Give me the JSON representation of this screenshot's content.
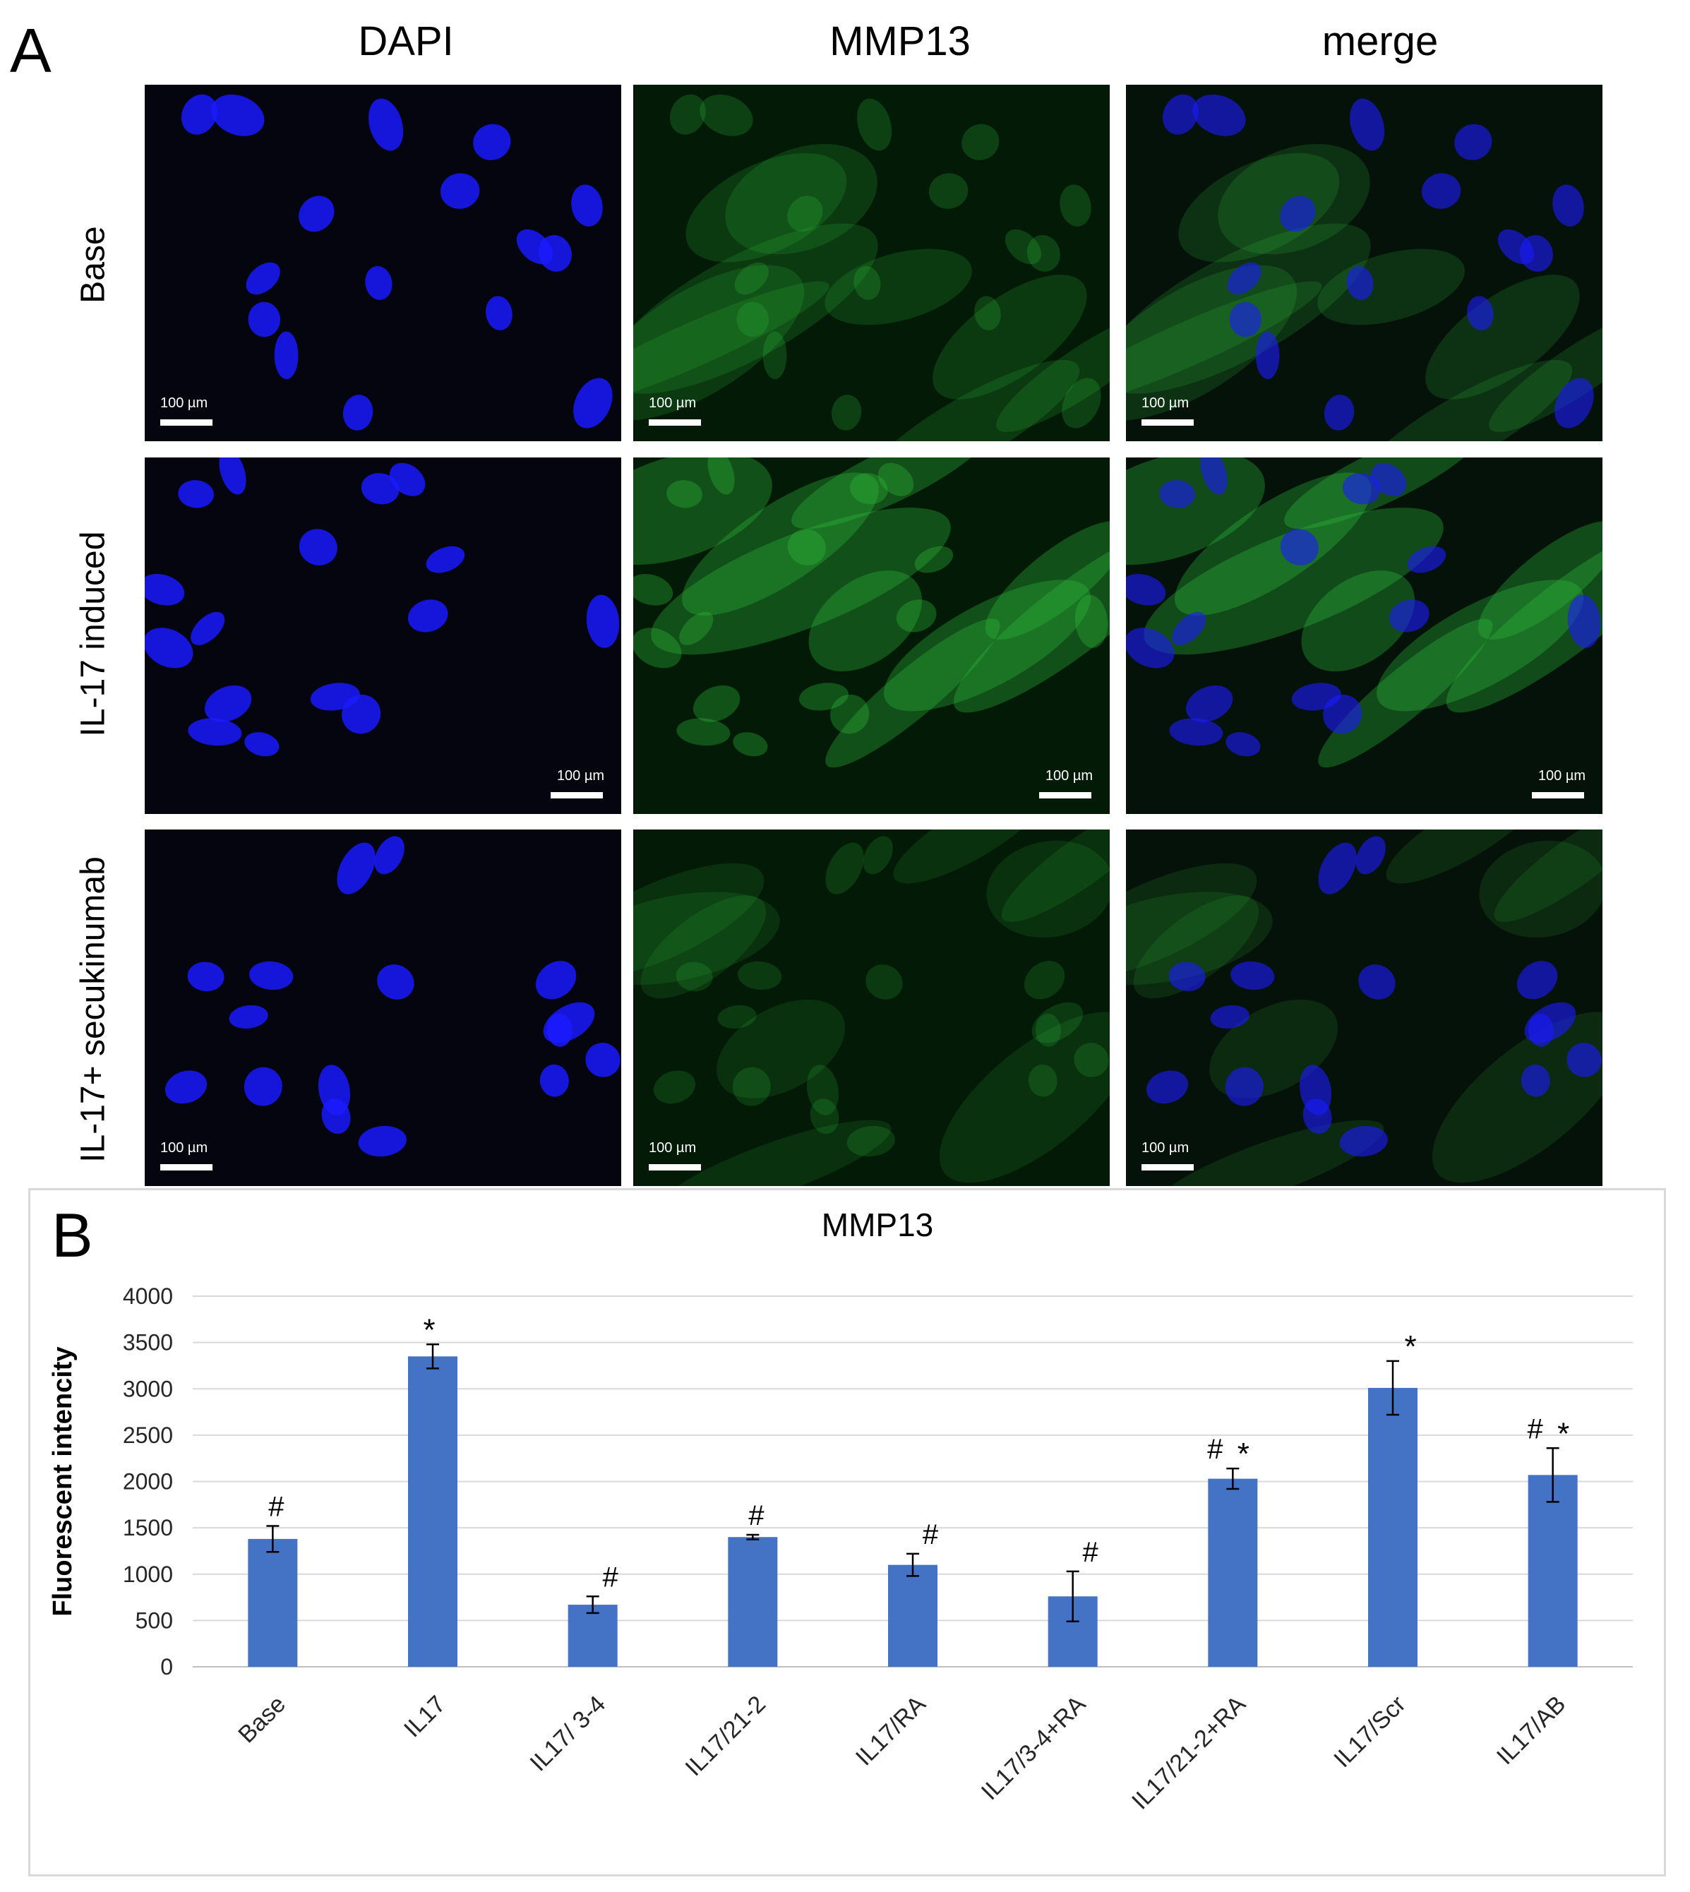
{
  "panel_a": {
    "letter": "A",
    "columns": [
      "DAPI",
      "MMP13",
      "merge"
    ],
    "rows": [
      "Base",
      "IL-17 induced",
      "IL-17+ secukinumab"
    ],
    "scale_label": "100 µm",
    "colors": {
      "dapi": "#1a1aff",
      "mmp13": "#2fbf3c",
      "background": "#05050f"
    }
  },
  "panel_b": {
    "letter": "B"
  },
  "chart_data": {
    "type": "bar",
    "title": "MMP13",
    "xlabel": "",
    "ylabel": "Fluorescent intencity",
    "ylim": [
      0,
      4000
    ],
    "yticks": [
      0,
      500,
      1000,
      1500,
      2000,
      2500,
      3000,
      3500,
      4000
    ],
    "grid": true,
    "bar_color": "#4472c4",
    "categories": [
      "Base",
      "IL17",
      "IL17/ 3-4",
      "IL17/21-2",
      "IL17/RA",
      "IL17/3-4+RA",
      "IL17/21-2+RA",
      "IL17/Scr",
      "IL17/AB"
    ],
    "values": [
      1380,
      3350,
      670,
      1400,
      1100,
      760,
      2030,
      3010,
      2070
    ],
    "errors": [
      140,
      130,
      90,
      25,
      120,
      270,
      110,
      290,
      290
    ],
    "annotations": [
      "#",
      "*",
      "#",
      "#",
      "#",
      "#",
      "#,*",
      "*",
      "#,*"
    ]
  }
}
